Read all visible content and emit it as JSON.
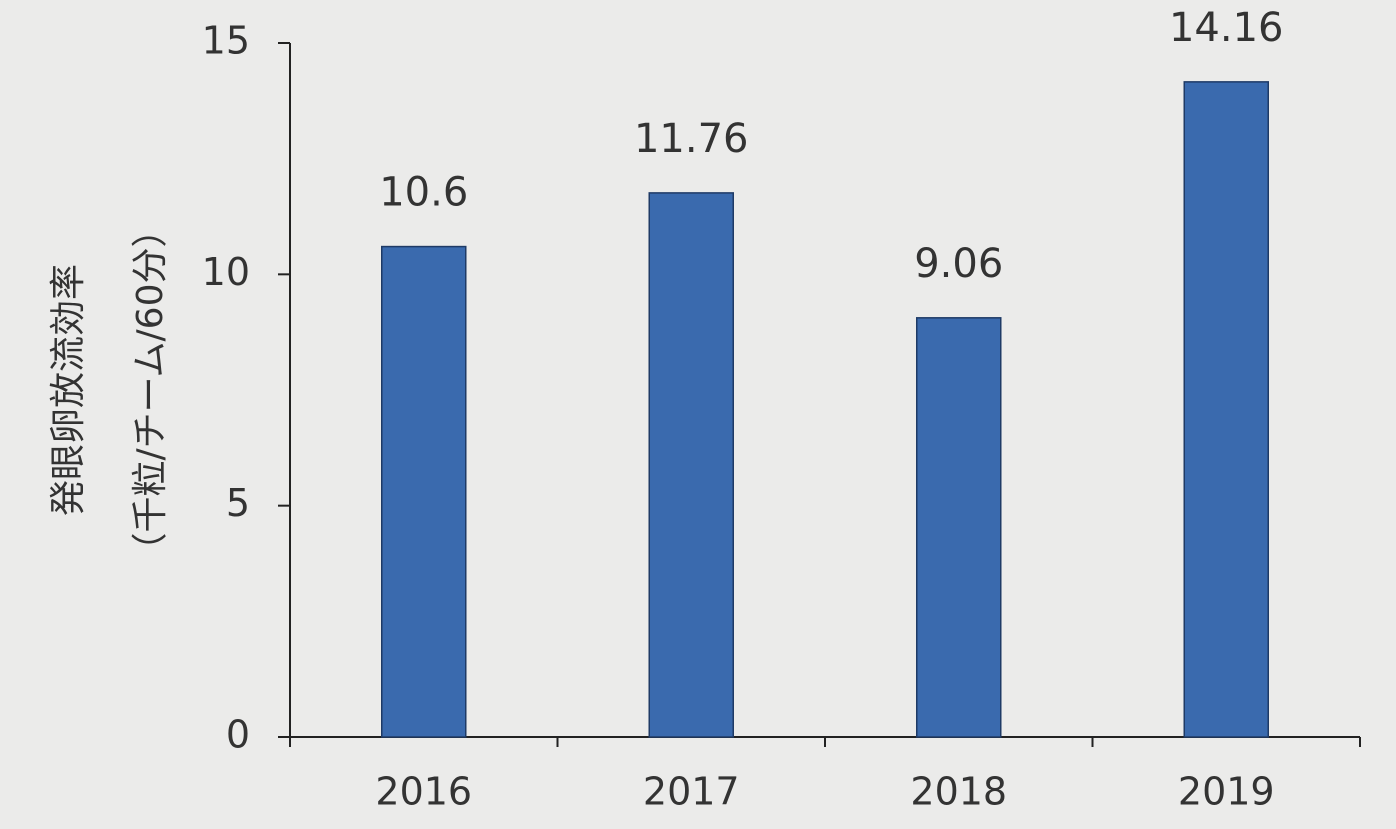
{
  "chart_data": {
    "type": "bar",
    "ylabel": "発眼卵放流効率",
    "ylabel_unit": "（千粒/チーム/60分）",
    "categories": [
      "2016",
      "2017",
      "2018",
      "2019"
    ],
    "values": [
      10.6,
      11.76,
      9.06,
      14.16
    ],
    "color": "#3a6aae",
    "ylim": [
      0,
      15
    ],
    "yticks": [
      0,
      5,
      10,
      15
    ],
    "grid": false
  }
}
